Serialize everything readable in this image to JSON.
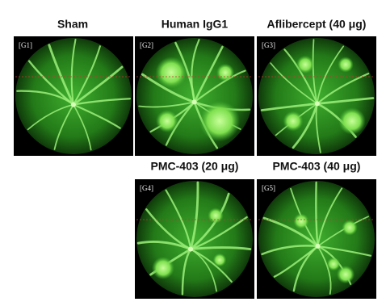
{
  "panels": [
    {
      "title": "Sham",
      "tag": "[G1]"
    },
    {
      "title": "Human IgG1",
      "tag": "[G2]"
    },
    {
      "title": "Aflibercept (40 μg)",
      "tag": "[G3]"
    },
    {
      "title": "PMC-403 (20 μg)",
      "tag": "[G4]"
    },
    {
      "title": "PMC-403 (40 μg)",
      "tag": "[G5]"
    }
  ]
}
